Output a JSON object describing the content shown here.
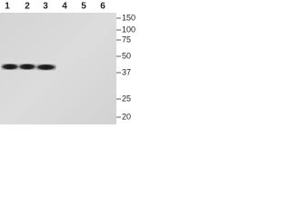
{
  "lanes": [
    "1",
    "2",
    "3",
    "4",
    "5",
    "6"
  ],
  "markers": [
    "150",
    "100",
    "75",
    "50",
    "37",
    "25",
    "20"
  ]
}
